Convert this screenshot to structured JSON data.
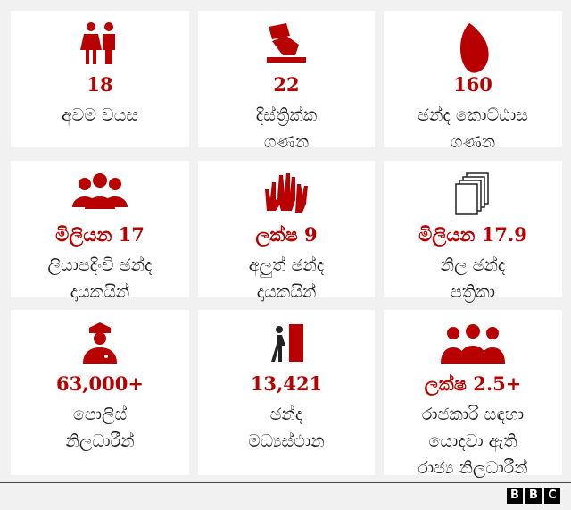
{
  "tiles": [
    {
      "value": "18",
      "label": [
        "අවම වයස"
      ]
    },
    {
      "value": "22",
      "label": [
        "දිස්ත්‍රික්ක",
        "ගණන"
      ]
    },
    {
      "value": "160",
      "label": [
        "ඡන්ද කොට්ඨාස",
        "ගණන"
      ]
    },
    {
      "value": "මිලියන 17",
      "label": [
        "ලියාපදිංචි ඡන්ද",
        "දායකයින්"
      ]
    },
    {
      "value": "ලක්ෂ 9",
      "label": [
        "අලුත් ඡන්ද",
        "දායකයින්"
      ]
    },
    {
      "value": "මිලියන 17.9",
      "label": [
        "නිල ඡන්ද",
        "පත්‍රිකා"
      ]
    },
    {
      "value": "63,000+",
      "label": [
        "පොලිස්",
        "නිලධාරීන්"
      ]
    },
    {
      "value": "13,421",
      "label": [
        "ඡන්ද",
        "මධ්‍යස්ථාන"
      ]
    },
    {
      "value": "ලක්ෂ 2.5+",
      "label": [
        "රාජකාරි සඳහා",
        "යොදවා ඇති",
        "රාජ්‍ය නිලධාරීන්"
      ]
    }
  ],
  "logo": [
    "B",
    "B",
    "C"
  ]
}
